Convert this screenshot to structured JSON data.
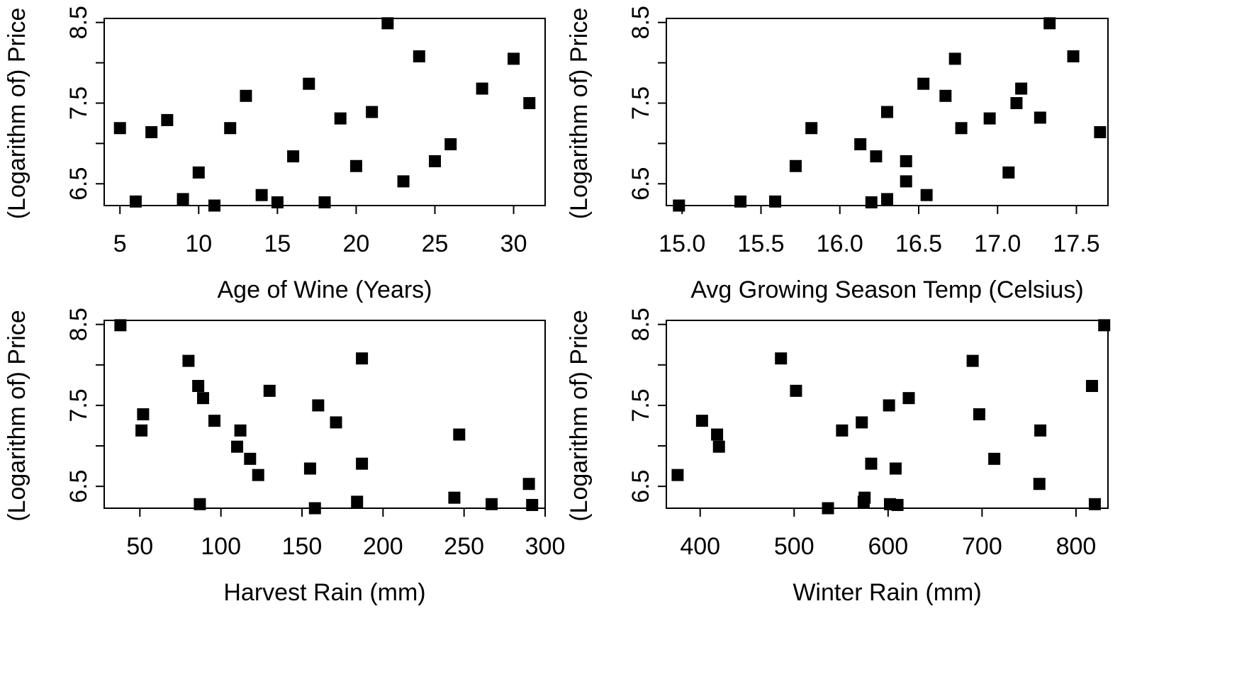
{
  "chart_data": [
    {
      "type": "scatter",
      "xlabel": "Age of Wine (Years)",
      "ylabel": "(Logarithm of) Price",
      "xlim": [
        4,
        32
      ],
      "ylim": [
        6.23,
        8.55
      ],
      "xticks": [
        5,
        10,
        15,
        20,
        25,
        30
      ],
      "xtick_labels": [
        "5",
        "10",
        "15",
        "20",
        "25",
        "30"
      ],
      "yticks": [
        6.5,
        7,
        7.5,
        8,
        8.5
      ],
      "ytick_labels": [
        "6.5",
        "",
        "7.5",
        "",
        "8.5"
      ],
      "marker": "square",
      "points": [
        [
          5,
          7.19
        ],
        [
          6,
          6.28
        ],
        [
          7,
          7.14
        ],
        [
          8,
          7.29
        ],
        [
          9,
          6.31
        ],
        [
          10,
          6.64
        ],
        [
          11,
          6.23
        ],
        [
          12,
          7.19
        ],
        [
          13,
          7.59
        ],
        [
          14,
          6.36
        ],
        [
          15,
          6.27
        ],
        [
          16,
          6.84
        ],
        [
          17,
          7.74
        ],
        [
          18,
          6.27
        ],
        [
          19,
          7.31
        ],
        [
          20,
          6.72
        ],
        [
          21,
          7.39
        ],
        [
          22,
          8.49
        ],
        [
          23,
          6.53
        ],
        [
          24,
          8.08
        ],
        [
          25,
          6.78
        ],
        [
          26,
          6.99
        ],
        [
          28,
          7.68
        ],
        [
          30,
          8.05
        ],
        [
          31,
          7.5
        ]
      ]
    },
    {
      "type": "scatter",
      "xlabel": "Avg Growing Season Temp (Celsius)",
      "ylabel": "(Logarithm of) Price",
      "xlim": [
        14.9,
        17.7
      ],
      "ylim": [
        6.23,
        8.55
      ],
      "xticks": [
        15.0,
        15.5,
        16.0,
        16.5,
        17.0,
        17.5
      ],
      "xtick_labels": [
        "15.0",
        "15.5",
        "16.0",
        "16.5",
        "17.0",
        "17.5"
      ],
      "yticks": [
        6.5,
        7,
        7.5,
        8,
        8.5
      ],
      "ytick_labels": [
        "6.5",
        "",
        "7.5",
        "",
        "8.5"
      ],
      "marker": "square",
      "points": [
        [
          14.98,
          6.23
        ],
        [
          15.37,
          6.28
        ],
        [
          15.59,
          6.28
        ],
        [
          15.72,
          6.72
        ],
        [
          15.82,
          7.19
        ],
        [
          16.13,
          6.99
        ],
        [
          16.2,
          6.27
        ],
        [
          16.23,
          6.84
        ],
        [
          16.3,
          6.31
        ],
        [
          16.3,
          7.39
        ],
        [
          16.42,
          6.53
        ],
        [
          16.42,
          6.78
        ],
        [
          16.53,
          7.74
        ],
        [
          16.55,
          6.36
        ],
        [
          16.67,
          7.59
        ],
        [
          16.73,
          8.05
        ],
        [
          16.77,
          7.19
        ],
        [
          16.95,
          7.31
        ],
        [
          17.07,
          6.64
        ],
        [
          17.12,
          7.5
        ],
        [
          17.15,
          7.68
        ],
        [
          17.27,
          7.32
        ],
        [
          17.33,
          8.49
        ],
        [
          17.48,
          8.08
        ],
        [
          17.65,
          7.14
        ]
      ]
    },
    {
      "type": "scatter",
      "xlabel": "Harvest Rain (mm)",
      "ylabel": "(Logarithm of) Price",
      "xlim": [
        28,
        300
      ],
      "ylim": [
        6.23,
        8.55
      ],
      "xticks": [
        50,
        100,
        150,
        200,
        250,
        300
      ],
      "xtick_labels": [
        "50",
        "100",
        "150",
        "200",
        "250",
        "300"
      ],
      "yticks": [
        6.5,
        7,
        7.5,
        8,
        8.5
      ],
      "ytick_labels": [
        "6.5",
        "",
        "7.5",
        "",
        "8.5"
      ],
      "marker": "square",
      "points": [
        [
          38,
          8.49
        ],
        [
          51,
          7.19
        ],
        [
          52,
          7.39
        ],
        [
          80,
          8.05
        ],
        [
          86,
          7.74
        ],
        [
          87,
          6.28
        ],
        [
          89,
          7.59
        ],
        [
          96,
          7.31
        ],
        [
          110,
          6.99
        ],
        [
          112,
          7.19
        ],
        [
          118,
          6.84
        ],
        [
          123,
          6.64
        ],
        [
          130,
          7.68
        ],
        [
          155,
          6.72
        ],
        [
          158,
          6.23
        ],
        [
          160,
          7.5
        ],
        [
          171,
          7.29
        ],
        [
          184,
          6.31
        ],
        [
          187,
          8.08
        ],
        [
          187,
          6.78
        ],
        [
          244,
          6.36
        ],
        [
          247,
          7.14
        ],
        [
          267,
          6.28
        ],
        [
          290,
          6.53
        ],
        [
          292,
          6.27
        ]
      ]
    },
    {
      "type": "scatter",
      "xlabel": "Winter Rain (mm)",
      "ylabel": "(Logarithm of) Price",
      "xlim": [
        364,
        834
      ],
      "ylim": [
        6.23,
        8.55
      ],
      "xticks": [
        400,
        500,
        600,
        700,
        800
      ],
      "xtick_labels": [
        "400",
        "500",
        "600",
        "700",
        "800"
      ],
      "yticks": [
        6.5,
        7,
        7.5,
        8,
        8.5
      ],
      "ytick_labels": [
        "6.5",
        "",
        "7.5",
        "",
        "8.5"
      ],
      "marker": "square",
      "points": [
        [
          376,
          6.64
        ],
        [
          402,
          7.31
        ],
        [
          418,
          7.14
        ],
        [
          420,
          6.99
        ],
        [
          486,
          8.08
        ],
        [
          502,
          7.68
        ],
        [
          536,
          6.23
        ],
        [
          551,
          7.19
        ],
        [
          572,
          7.29
        ],
        [
          574,
          6.31
        ],
        [
          575,
          6.36
        ],
        [
          582,
          6.78
        ],
        [
          601,
          7.5
        ],
        [
          602,
          6.28
        ],
        [
          608,
          6.72
        ],
        [
          610,
          6.27
        ],
        [
          622,
          7.59
        ],
        [
          690,
          8.05
        ],
        [
          697,
          7.39
        ],
        [
          713,
          6.84
        ],
        [
          761,
          6.53
        ],
        [
          762,
          7.19
        ],
        [
          817,
          7.74
        ],
        [
          820,
          6.28
        ],
        [
          830,
          8.49
        ]
      ]
    }
  ]
}
